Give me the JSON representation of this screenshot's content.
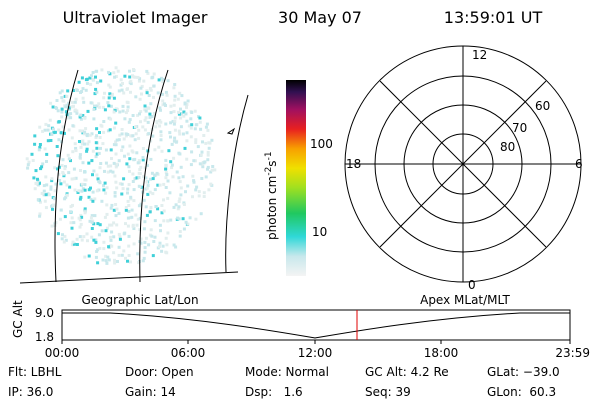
{
  "header": {
    "title": "Ultraviolet Imager",
    "date": "30 May 07",
    "time": "13:59:01 UT"
  },
  "colorbar": {
    "ticks": [
      "100",
      "10"
    ],
    "unit": {
      "base": "photon cm",
      "exp1": "-2",
      "mid": "s",
      "exp2": "-1"
    }
  },
  "polar": {
    "rings": [
      "80",
      "70",
      "60"
    ],
    "clock": {
      "top": "12",
      "left": "18",
      "right": "6",
      "bottom": "0"
    }
  },
  "timeline": {
    "left_label": "Geographic Lat/Lon",
    "right_label": "Apex MLat/MLT",
    "axis_label": "GC Alt",
    "yticks": [
      "9.0",
      "1.8"
    ],
    "xticks": [
      "00:00",
      "06:00",
      "12:00",
      "18:00",
      "23:59"
    ]
  },
  "footer": {
    "rows": [
      [
        "Flt: LBHL",
        "Door: Open",
        "Mode: Normal",
        "GC Alt: 4.2 Re",
        "GLat: −39.0"
      ],
      [
        "IP: 36.0",
        "Gain: 14",
        "Dsp:   1.6",
        "Seq: 39",
        "GLon:  60.3"
      ]
    ]
  }
}
